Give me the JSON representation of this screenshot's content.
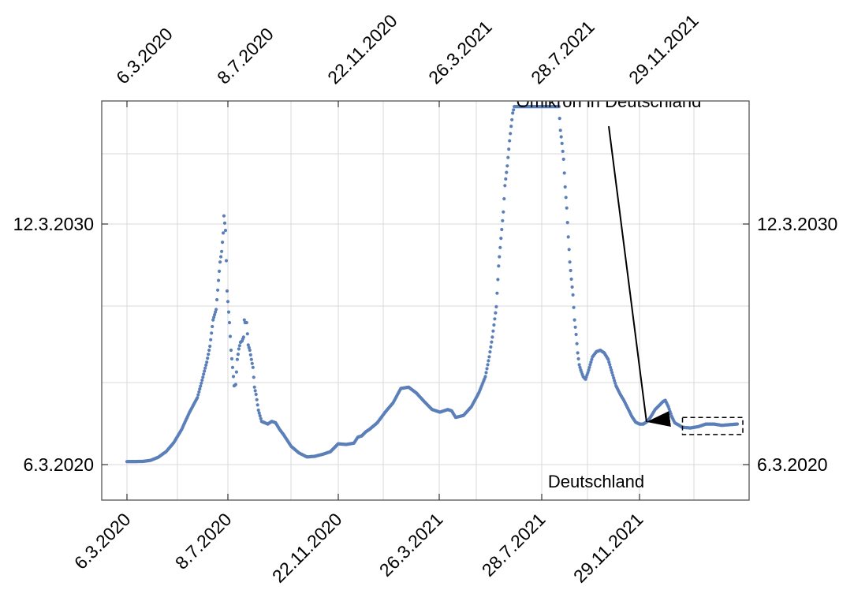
{
  "chart_data": {
    "type": "scatter",
    "title": "",
    "xlabel": "",
    "ylabel": "",
    "x_ticks": [
      "6.3.2020",
      "8.7.2020",
      "22.11.2020",
      "26.3.2021",
      "28.7.2021",
      "29.11.2021"
    ],
    "y_ticks": [
      "6.3.2020",
      "12.3.2030"
    ],
    "grid": true,
    "series": [
      {
        "color": "#5b7fb9",
        "points": [
          [
            0,
            5
          ],
          [
            20,
            6
          ],
          [
            30,
            14
          ],
          [
            40,
            38
          ],
          [
            50,
            80
          ],
          [
            60,
            150
          ],
          [
            70,
            250
          ],
          [
            80,
            380
          ],
          [
            90,
            490
          ],
          [
            95,
            600
          ],
          [
            102,
            760
          ],
          [
            106,
            880
          ],
          [
            110,
            1080
          ],
          [
            114,
            1160
          ],
          [
            117,
            1380
          ],
          [
            119,
            1520
          ],
          [
            121,
            1600
          ],
          [
            123,
            1740
          ],
          [
            124,
            1870
          ],
          [
            126,
            1760
          ],
          [
            128,
            1300
          ],
          [
            129,
            1220
          ],
          [
            131,
            1060
          ],
          [
            133,
            850
          ],
          [
            135,
            720
          ],
          [
            137,
            580
          ],
          [
            139,
            590
          ],
          [
            141,
            780
          ],
          [
            143,
            860
          ],
          [
            145,
            910
          ],
          [
            147,
            920
          ],
          [
            149,
            950
          ],
          [
            150,
            1080
          ],
          [
            151,
            1060
          ],
          [
            153,
            1060
          ],
          [
            155,
            890
          ],
          [
            157,
            850
          ],
          [
            159,
            780
          ],
          [
            161,
            720
          ],
          [
            163,
            570
          ],
          [
            165,
            515
          ],
          [
            168,
            395
          ],
          [
            172,
            310
          ],
          [
            176,
            300
          ],
          [
            180,
            290
          ],
          [
            185,
            310
          ],
          [
            190,
            300
          ],
          [
            195,
            250
          ],
          [
            200,
            210
          ],
          [
            210,
            120
          ],
          [
            220,
            70
          ],
          [
            230,
            40
          ],
          [
            240,
            45
          ],
          [
            250,
            60
          ],
          [
            260,
            80
          ],
          [
            270,
            140
          ],
          [
            280,
            135
          ],
          [
            290,
            145
          ],
          [
            295,
            190
          ],
          [
            300,
            200
          ],
          [
            305,
            230
          ],
          [
            310,
            250
          ],
          [
            320,
            300
          ],
          [
            330,
            380
          ],
          [
            340,
            450
          ],
          [
            350,
            560
          ],
          [
            360,
            570
          ],
          [
            370,
            525
          ],
          [
            380,
            460
          ],
          [
            390,
            400
          ],
          [
            400,
            380
          ],
          [
            410,
            400
          ],
          [
            415,
            390
          ],
          [
            420,
            340
          ],
          [
            430,
            355
          ],
          [
            440,
            420
          ],
          [
            450,
            530
          ],
          [
            458,
            650
          ],
          [
            463,
            800
          ],
          [
            467,
            950
          ],
          [
            472,
            1180
          ],
          [
            475,
            1490
          ],
          [
            478,
            1700
          ],
          [
            481,
            1900
          ],
          [
            483,
            2100
          ],
          [
            486,
            2250
          ],
          [
            489,
            2440
          ],
          [
            491,
            2550
          ],
          [
            493,
            2650
          ],
          [
            495,
            2700
          ],
          [
            552,
            2700
          ],
          [
            554,
            2520
          ],
          [
            556,
            2420
          ],
          [
            558,
            2300
          ],
          [
            560,
            2090
          ],
          [
            562,
            1930
          ],
          [
            564,
            1710
          ],
          [
            566,
            1520
          ],
          [
            568,
            1390
          ],
          [
            570,
            1270
          ],
          [
            572,
            1080
          ],
          [
            574,
            970
          ],
          [
            576,
            830
          ],
          [
            578,
            740
          ],
          [
            580,
            700
          ],
          [
            583,
            650
          ],
          [
            586,
            630
          ],
          [
            589,
            680
          ],
          [
            592,
            740
          ],
          [
            595,
            800
          ],
          [
            600,
            840
          ],
          [
            605,
            850
          ],
          [
            610,
            830
          ],
          [
            615,
            780
          ],
          [
            620,
            680
          ],
          [
            625,
            580
          ],
          [
            630,
            520
          ],
          [
            635,
            470
          ],
          [
            640,
            410
          ],
          [
            645,
            350
          ],
          [
            650,
            305
          ],
          [
            655,
            290
          ],
          [
            660,
            290
          ],
          [
            665,
            310
          ],
          [
            670,
            350
          ],
          [
            675,
            400
          ],
          [
            680,
            430
          ],
          [
            685,
            460
          ],
          [
            688,
            470
          ],
          [
            692,
            420
          ],
          [
            696,
            350
          ],
          [
            700,
            300
          ],
          [
            710,
            265
          ],
          [
            720,
            260
          ],
          [
            730,
            270
          ],
          [
            740,
            290
          ],
          [
            750,
            290
          ],
          [
            760,
            280
          ],
          [
            770,
            285
          ],
          [
            780,
            290
          ]
        ]
      }
    ],
    "annotations": [
      {
        "text": "Omikron in Deutschland",
        "arrow_to": [
          664,
          300
        ]
      },
      {
        "text": "Deutschland"
      }
    ],
    "highlight_box": {
      "x": [
        718,
        780
      ],
      "y": [
        210,
        340
      ]
    }
  }
}
